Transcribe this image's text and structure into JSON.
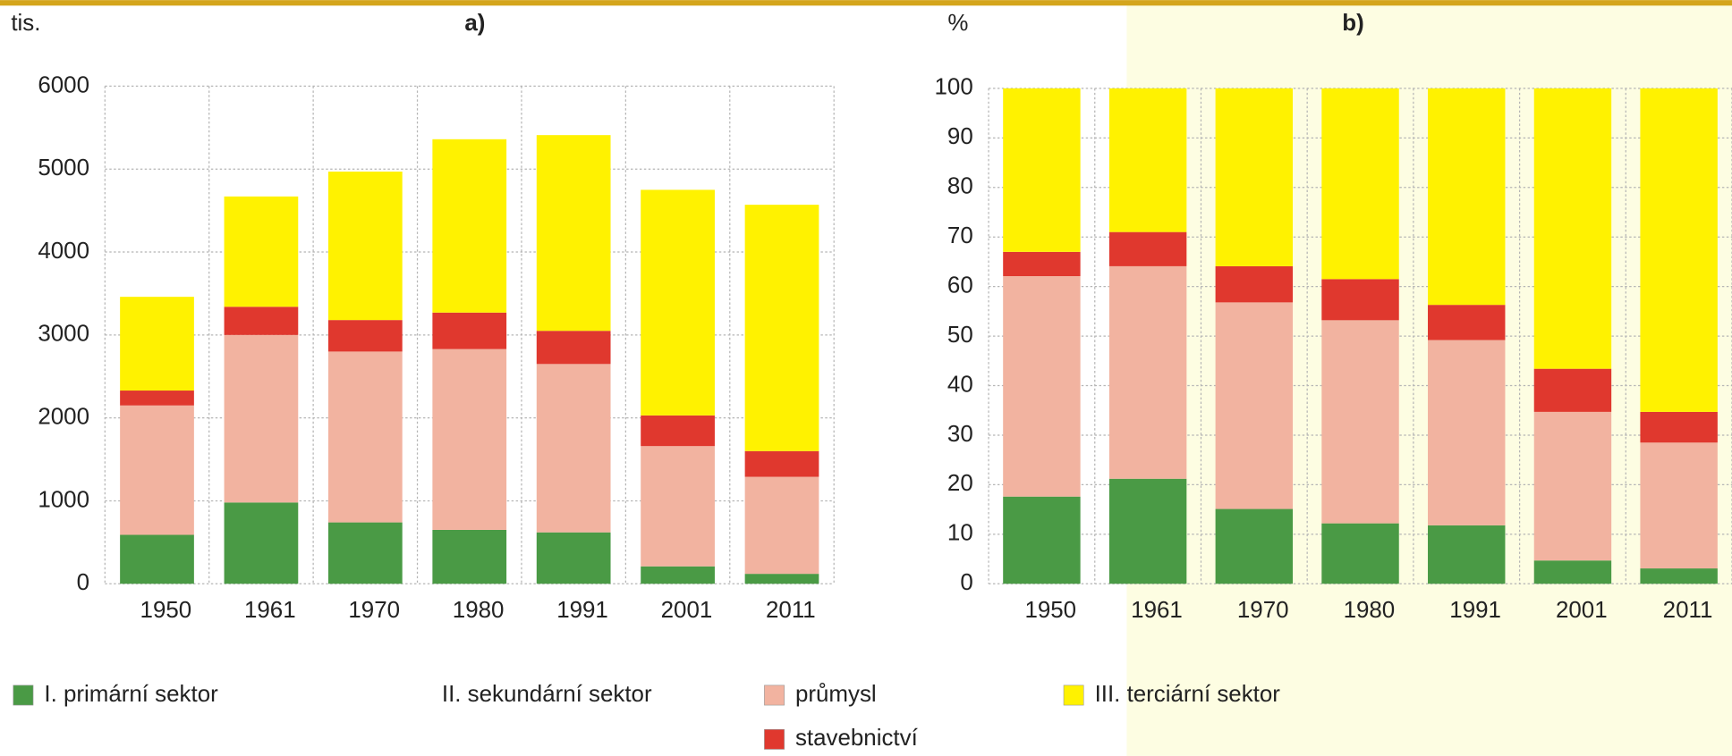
{
  "chart_data": [
    {
      "type": "bar",
      "stacked": true,
      "title": "a)",
      "ylabel": "tis.",
      "categories": [
        "1950",
        "1961",
        "1970",
        "1980",
        "1991",
        "2001",
        "2011"
      ],
      "series": [
        {
          "name": "I. primární sektor",
          "color": "#4a9a45",
          "values": [
            590,
            980,
            740,
            650,
            620,
            210,
            120
          ]
        },
        {
          "name": "průmysl",
          "color": "#f2b3a0",
          "values": [
            1560,
            2020,
            2060,
            2180,
            2030,
            1450,
            1170
          ]
        },
        {
          "name": "stavebnictví",
          "color": "#e0382e",
          "values": [
            180,
            340,
            380,
            440,
            400,
            370,
            310
          ]
        },
        {
          "name": "III. terciární sektor",
          "color": "#fff200",
          "values": [
            1130,
            1330,
            1790,
            2090,
            2360,
            2720,
            2970
          ]
        }
      ],
      "legend_group": "II. sekundární sektor",
      "ylim": [
        0,
        6000
      ],
      "yticks": [
        0,
        1000,
        2000,
        3000,
        4000,
        5000,
        6000
      ],
      "grid": true
    },
    {
      "type": "bar",
      "stacked": true,
      "title": "b)",
      "ylabel": "%",
      "categories": [
        "1950",
        "1961",
        "1970",
        "1980",
        "1991",
        "2001",
        "2011"
      ],
      "series": [
        {
          "name": "I. primární sektor",
          "color": "#4a9a45",
          "values": [
            17.6,
            21.2,
            15.1,
            12.2,
            11.8,
            4.7,
            3.1
          ]
        },
        {
          "name": "průmysl",
          "color": "#f2b3a0",
          "values": [
            44.5,
            42.9,
            41.7,
            41.0,
            37.4,
            30.0,
            25.4
          ]
        },
        {
          "name": "stavebnictví",
          "color": "#e0382e",
          "values": [
            4.9,
            6.9,
            7.3,
            8.3,
            7.1,
            8.7,
            6.2
          ]
        },
        {
          "name": "III. terciární sektor",
          "color": "#fff200",
          "values": [
            33.0,
            29.0,
            35.9,
            38.5,
            43.7,
            56.6,
            65.3
          ]
        }
      ],
      "ylim": [
        0,
        100
      ],
      "yticks": [
        0,
        10,
        20,
        30,
        40,
        50,
        60,
        70,
        80,
        90,
        100
      ],
      "grid": true
    }
  ]
}
